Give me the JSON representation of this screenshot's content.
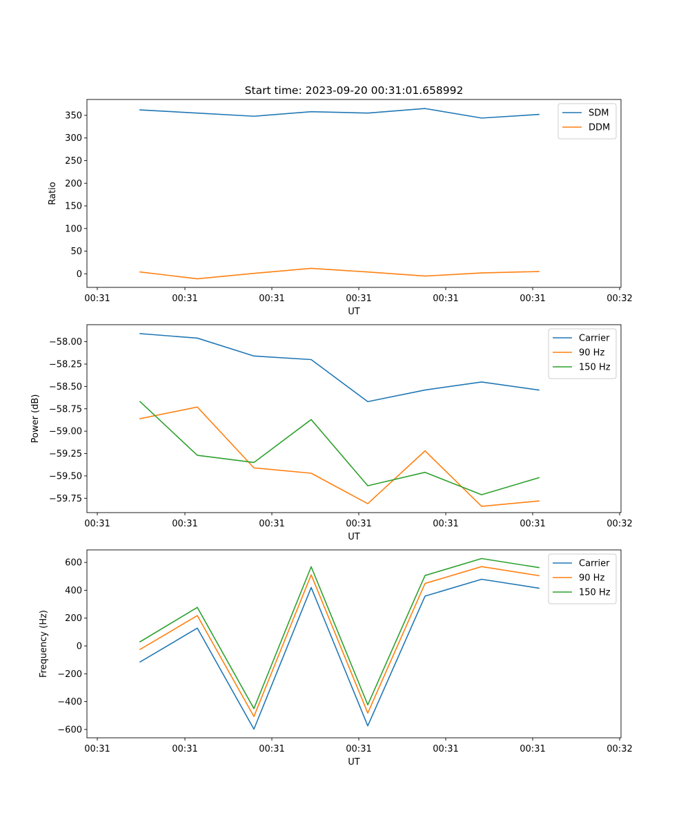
{
  "chart_data": [
    {
      "type": "line",
      "title": "Start time: 2023-09-20 00:31:01.658992",
      "xlabel": "UT",
      "ylabel": "Ratio",
      "xticks": [
        "00:31",
        "00:31",
        "00:31",
        "00:31",
        "00:31",
        "00:31",
        "00:32"
      ],
      "yticks": [
        0,
        50,
        100,
        150,
        200,
        250,
        300,
        350
      ],
      "ylim": [
        -30,
        385
      ],
      "legend": "top-right",
      "series": [
        {
          "name": "SDM",
          "color": "#1f77b4",
          "values": [
            362,
            355,
            348,
            358,
            355,
            365,
            344,
            352
          ]
        },
        {
          "name": "DDM",
          "color": "#ff7f0e",
          "values": [
            4,
            -11,
            1,
            12,
            4,
            -5,
            2,
            5
          ]
        }
      ]
    },
    {
      "type": "line",
      "title": "",
      "xlabel": "UT",
      "ylabel": "Power (dB)",
      "xticks": [
        "00:31",
        "00:31",
        "00:31",
        "00:31",
        "00:31",
        "00:31",
        "00:32"
      ],
      "yticks": [
        -58.0,
        -58.25,
        -58.5,
        -58.75,
        -59.0,
        -59.25,
        -59.5,
        -59.75
      ],
      "ytick_labels": [
        "−58.00",
        "−58.25",
        "−58.50",
        "−58.75",
        "−59.00",
        "−59.25",
        "−59.50",
        "−59.75"
      ],
      "ylim": [
        -59.91,
        -57.81
      ],
      "legend": "top-right",
      "series": [
        {
          "name": "Carrier",
          "color": "#1f77b4",
          "values": [
            -57.91,
            -57.96,
            -58.16,
            -58.2,
            -58.67,
            -58.54,
            -58.45,
            -58.54
          ]
        },
        {
          "name": "90 Hz",
          "color": "#ff7f0e",
          "values": [
            -58.86,
            -58.73,
            -59.41,
            -59.47,
            -59.81,
            -59.22,
            -59.84,
            -59.78
          ]
        },
        {
          "name": "150 Hz",
          "color": "#2ca02c",
          "values": [
            -58.67,
            -59.27,
            -59.35,
            -58.87,
            -59.61,
            -59.46,
            -59.71,
            -59.52
          ]
        }
      ]
    },
    {
      "type": "line",
      "title": "",
      "xlabel": "UT",
      "ylabel": "Frequency (Hz)",
      "xticks": [
        "00:31",
        "00:31",
        "00:31",
        "00:31",
        "00:31",
        "00:31",
        "00:32"
      ],
      "yticks": [
        -600,
        -400,
        -200,
        0,
        200,
        400,
        600
      ],
      "ytick_labels": [
        "−600",
        "−400",
        "−200",
        "0",
        "200",
        "400",
        "600"
      ],
      "ylim": [
        -660,
        690
      ],
      "legend": "top-right",
      "series": [
        {
          "name": "Carrier",
          "color": "#1f77b4",
          "values": [
            -115,
            128,
            -598,
            420,
            -574,
            358,
            479,
            415
          ]
        },
        {
          "name": "90 Hz",
          "color": "#ff7f0e",
          "values": [
            -25,
            218,
            -507,
            511,
            -482,
            449,
            570,
            505
          ]
        },
        {
          "name": "150 Hz",
          "color": "#2ca02c",
          "values": [
            30,
            277,
            -450,
            569,
            -423,
            506,
            628,
            563
          ]
        }
      ]
    }
  ]
}
